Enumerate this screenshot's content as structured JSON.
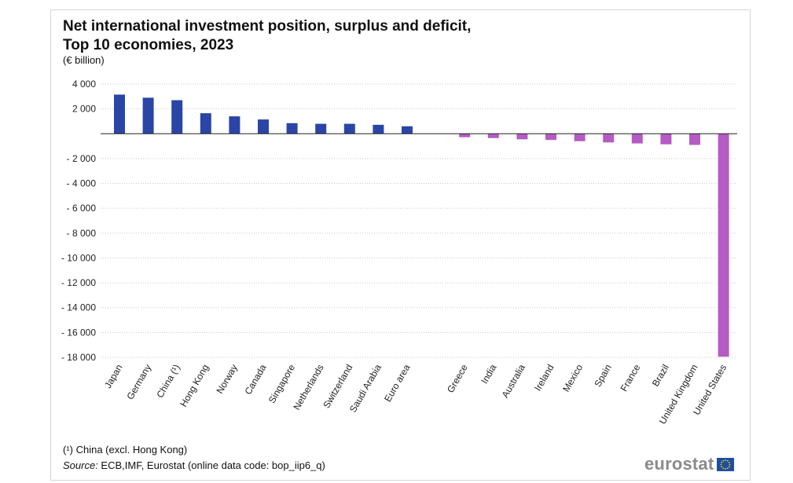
{
  "chart_data": {
    "type": "bar",
    "title_line1": "Net international investment position, surplus and deficit,",
    "title_line2": "Top 10 economies, 2023",
    "unit": "(€ billion)",
    "ylim": [
      -18000,
      4000
    ],
    "yticks": [
      4000,
      2000,
      0,
      -2000,
      -4000,
      -6000,
      -8000,
      -10000,
      -12000,
      -14000,
      -16000,
      -18000
    ],
    "ytick_labels": [
      "4 000",
      "2 000",
      "",
      "- 2 000",
      "- 4 000",
      "- 6 000",
      "- 8 000",
      "- 10 000",
      "- 12 000",
      "- 14 000",
      "- 16 000",
      "- 18 000"
    ],
    "surplus_color": "#2a45a6",
    "deficit_color": "#b55bc4",
    "surplus": {
      "categories": [
        "Japan",
        "Germany",
        "China (¹)",
        "Hong Kong",
        "Norway",
        "Canada",
        "Singapore",
        "Netherlands",
        "Switzerland",
        "Saudi Arabia",
        "Euro area"
      ],
      "values": [
        3150,
        2900,
        2700,
        1650,
        1400,
        1150,
        850,
        800,
        800,
        720,
        600
      ]
    },
    "deficit": {
      "categories": [
        "Greece",
        "India",
        "Australia",
        "Ireland",
        "Mexico",
        "Spain",
        "France",
        "Brazil",
        "United Kingdom",
        "United States"
      ],
      "values": [
        -280,
        -350,
        -450,
        -500,
        -600,
        -700,
        -780,
        -850,
        -900,
        -17950
      ]
    }
  },
  "footnote": "(¹) China (excl. Hong Kong)",
  "source_label": "Source:",
  "source_text": " ECB,IMF, Eurostat (online data code: bop_iip6_q)",
  "logo_text": "eurostat"
}
